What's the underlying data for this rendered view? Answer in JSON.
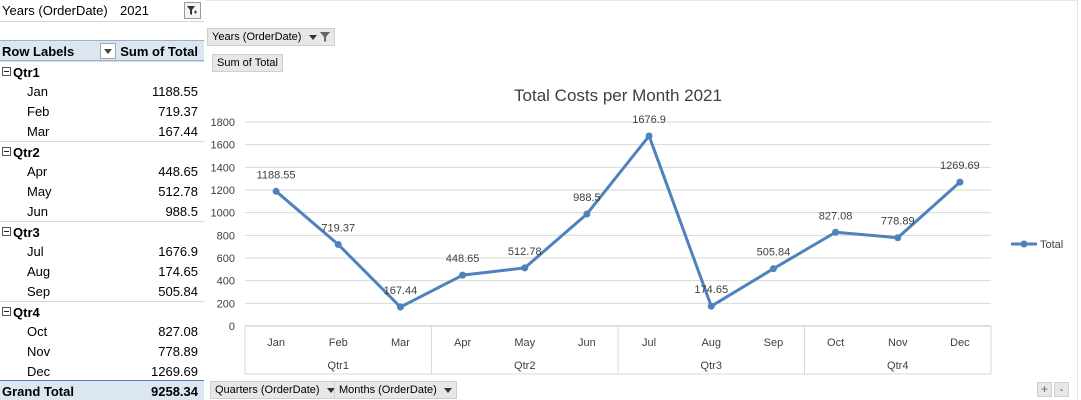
{
  "filter": {
    "label": "Years (OrderDate)",
    "value": "2021"
  },
  "pivot": {
    "header_label": "Row Labels",
    "header_value": "Sum of Total",
    "groups": [
      {
        "label": "Qtr1",
        "rows": [
          {
            "label": "Jan",
            "value": "1188.55"
          },
          {
            "label": "Feb",
            "value": "719.37"
          },
          {
            "label": "Mar",
            "value": "167.44"
          }
        ]
      },
      {
        "label": "Qtr2",
        "rows": [
          {
            "label": "Apr",
            "value": "448.65"
          },
          {
            "label": "May",
            "value": "512.78"
          },
          {
            "label": "Jun",
            "value": "988.5"
          }
        ]
      },
      {
        "label": "Qtr3",
        "rows": [
          {
            "label": "Jul",
            "value": "1676.9"
          },
          {
            "label": "Aug",
            "value": "174.65"
          },
          {
            "label": "Sep",
            "value": "505.84"
          }
        ]
      },
      {
        "label": "Qtr4",
        "rows": [
          {
            "label": "Oct",
            "value": "827.08"
          },
          {
            "label": "Nov",
            "value": "778.89"
          },
          {
            "label": "Dec",
            "value": "1269.69"
          }
        ]
      }
    ],
    "grand_label": "Grand Total",
    "grand_value": "9258.34"
  },
  "chart_buttons": {
    "filter_field": "Years (OrderDate)",
    "value_field": "Sum of Total",
    "axis_field_1": "Quarters (OrderDate)",
    "axis_field_2": "Months (OrderDate)",
    "zoom_in": "+",
    "zoom_out": "-"
  },
  "chart_data": {
    "type": "line",
    "title": "Total Costs per Month 2021",
    "categories": [
      "Jan",
      "Feb",
      "Mar",
      "Apr",
      "May",
      "Jun",
      "Jul",
      "Aug",
      "Sep",
      "Oct",
      "Nov",
      "Dec"
    ],
    "groups": [
      "Qtr1",
      "Qtr2",
      "Qtr3",
      "Qtr4"
    ],
    "series": [
      {
        "name": "Total",
        "values": [
          1188.55,
          719.37,
          167.44,
          448.65,
          512.78,
          988.5,
          1676.9,
          174.65,
          505.84,
          827.08,
          778.89,
          1269.69
        ]
      }
    ],
    "ylim": [
      0,
      1800
    ],
    "yticks": [
      "0",
      "200",
      "400",
      "600",
      "800",
      "1000",
      "1200",
      "1400",
      "1600",
      "1800"
    ],
    "grid": true,
    "legend": "right",
    "color": "#4f81bd"
  }
}
